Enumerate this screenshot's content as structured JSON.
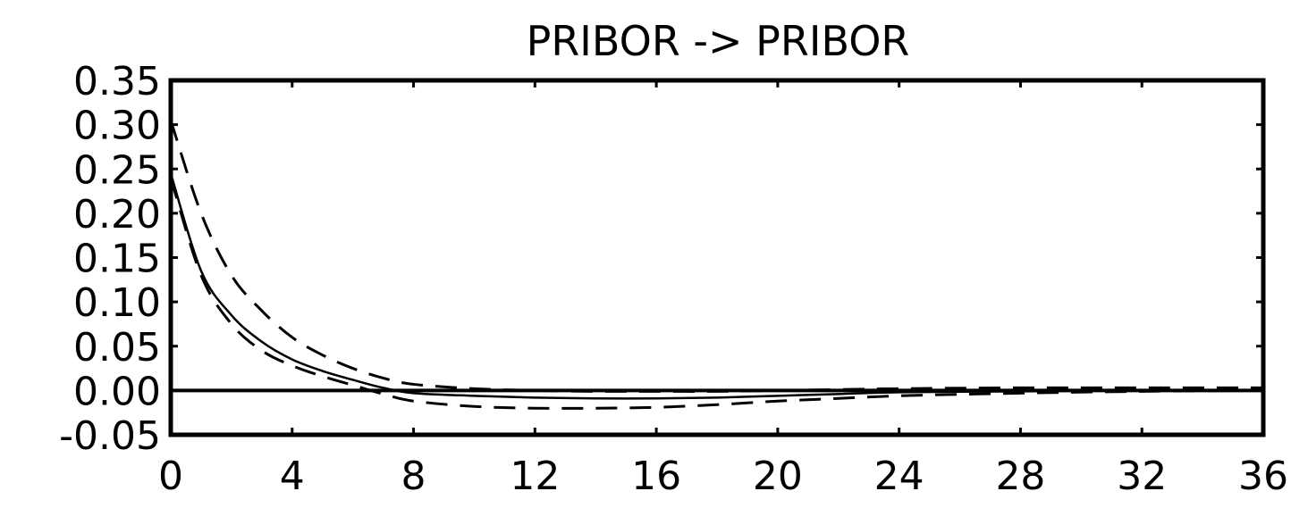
{
  "chart_data": {
    "type": "line",
    "title": "PRIBOR -> PRIBOR",
    "xlabel": "",
    "ylabel": "",
    "xlim": [
      0,
      36
    ],
    "ylim": [
      -0.05,
      0.35
    ],
    "x_ticks": [
      "0",
      "4",
      "8",
      "12",
      "16",
      "20",
      "24",
      "28",
      "32",
      "36"
    ],
    "y_ticks": [
      "0.35",
      "0.30",
      "0.25",
      "0.20",
      "0.15",
      "0.10",
      "0.05",
      "0.00",
      "-0.05"
    ],
    "grid": false,
    "zero_line": true,
    "series": [
      {
        "style": "solid",
        "color": "#000000",
        "x": [
          0,
          1,
          2,
          3,
          4,
          5,
          6,
          7,
          8,
          10,
          12,
          14,
          16,
          18,
          20,
          22,
          24,
          28,
          32,
          36
        ],
        "values": [
          0.245,
          0.135,
          0.085,
          0.055,
          0.035,
          0.022,
          0.012,
          0.003,
          -0.003,
          -0.006,
          -0.008,
          -0.009,
          -0.009,
          -0.008,
          -0.006,
          -0.004,
          -0.002,
          -0.001,
          0.0,
          0.0
        ]
      },
      {
        "style": "dashed",
        "color": "#000000",
        "x": [
          0,
          1,
          2,
          3,
          4,
          5,
          6,
          7,
          8,
          10,
          12,
          14,
          16,
          18,
          20,
          22,
          24,
          28,
          32,
          36
        ],
        "values": [
          0.305,
          0.2,
          0.13,
          0.09,
          0.06,
          0.04,
          0.025,
          0.014,
          0.007,
          0.002,
          0.0,
          -0.001,
          -0.001,
          -0.001,
          0.0,
          0.001,
          0.002,
          0.003,
          0.003,
          0.003
        ]
      },
      {
        "style": "dashed",
        "color": "#000000",
        "x": [
          0,
          1,
          2,
          3,
          4,
          5,
          6,
          7,
          8,
          10,
          12,
          14,
          16,
          18,
          20,
          22,
          24,
          28,
          32,
          36
        ],
        "values": [
          0.24,
          0.13,
          0.075,
          0.045,
          0.028,
          0.016,
          0.006,
          -0.004,
          -0.012,
          -0.018,
          -0.02,
          -0.02,
          -0.019,
          -0.016,
          -0.012,
          -0.009,
          -0.006,
          -0.003,
          -0.001,
          0.0
        ]
      }
    ]
  }
}
